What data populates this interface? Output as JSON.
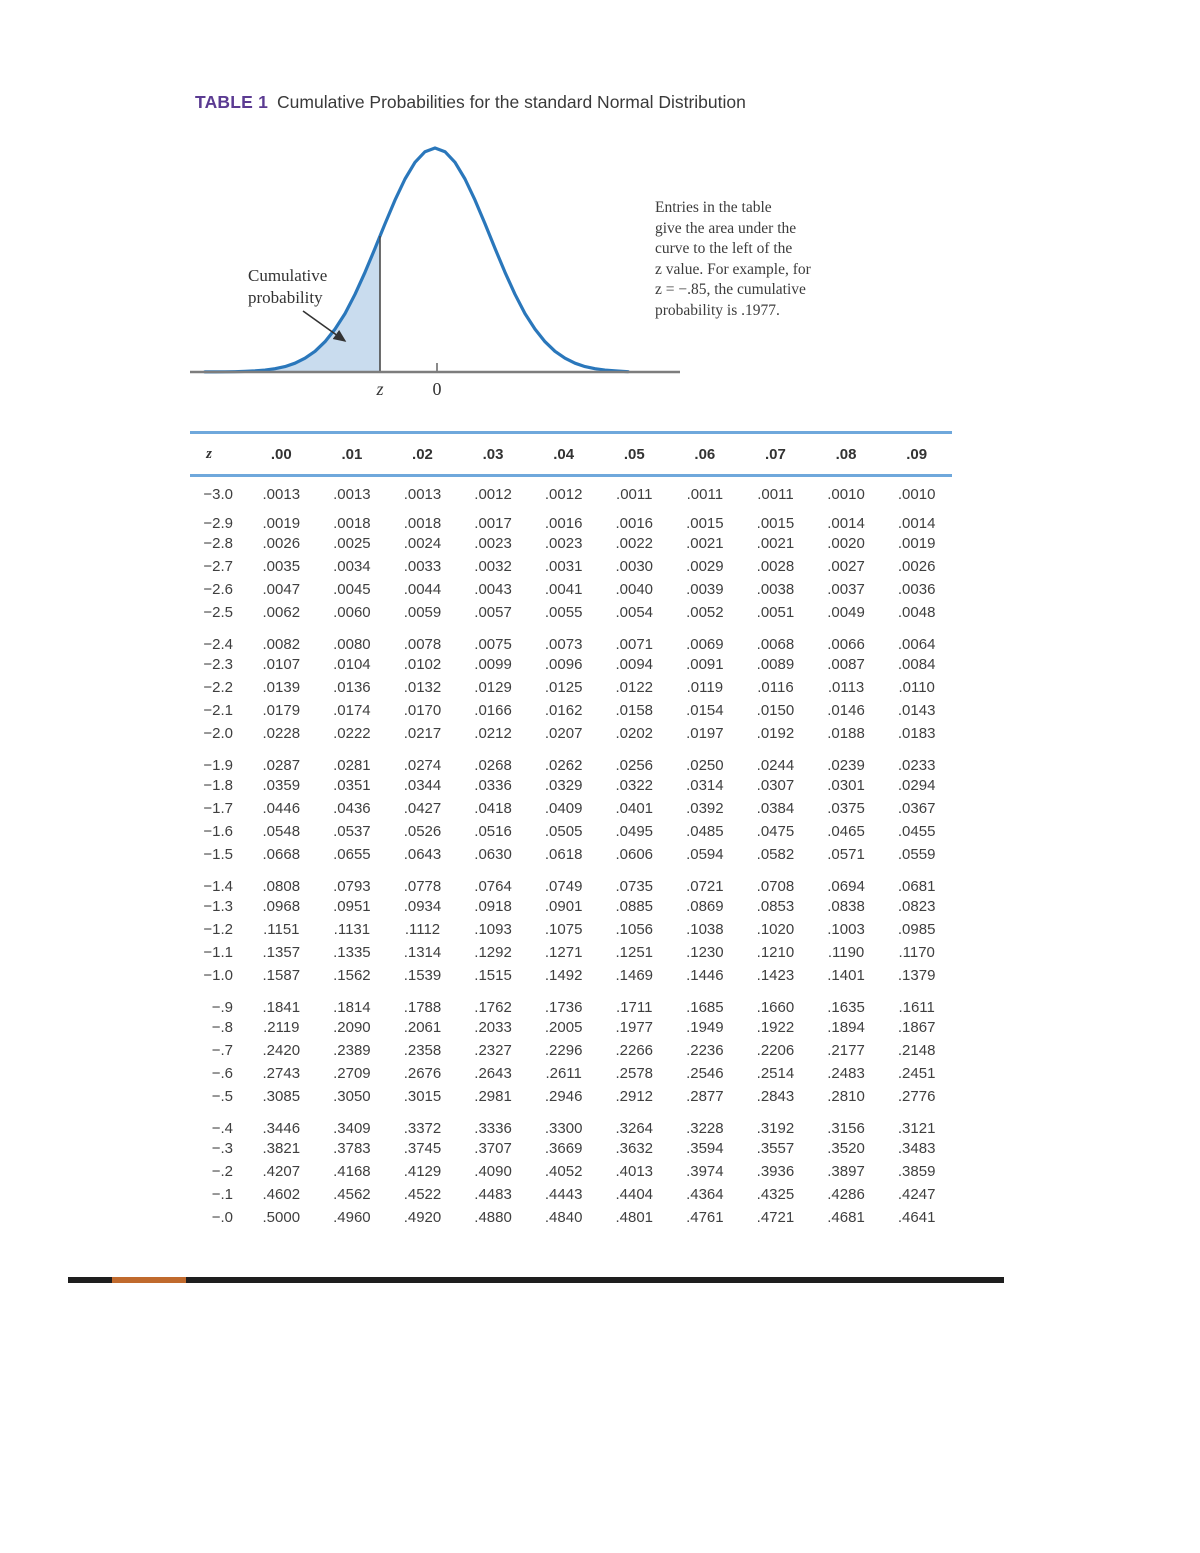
{
  "title": {
    "label": "TABLE 1",
    "text": "Cumulative Probabilities for the standard Normal Distribution"
  },
  "figure": {
    "cumulative_label_lines": [
      "Cumulative",
      "probability"
    ],
    "axis_label_z": "z",
    "axis_label_zero": "0",
    "annotation_lines": [
      "Entries in the table",
      "give the area under the",
      "curve to the left of the",
      "z value. For example, for",
      "z = −.85, the cumulative",
      "probability is .1977."
    ]
  },
  "colors": {
    "title_accent": "#5b3b92",
    "table_rule_blue": "#6fa8dc",
    "curve_blue": "#2a77bb",
    "shade_blue": "#c9dcee",
    "bottom_bar_black": "#1e1e1e",
    "bottom_bar_orange": "#c06a2d"
  },
  "table": {
    "col_headers": [
      "z",
      ".00",
      ".01",
      ".02",
      ".03",
      ".04",
      ".05",
      ".06",
      ".07",
      ".08",
      ".09"
    ],
    "groups": [
      [
        [
          "−3.0",
          ".0013",
          ".0013",
          ".0013",
          ".0012",
          ".0012",
          ".0011",
          ".0011",
          ".0011",
          ".0010",
          ".0010"
        ]
      ],
      [
        [
          "−2.9",
          ".0019",
          ".0018",
          ".0018",
          ".0017",
          ".0016",
          ".0016",
          ".0015",
          ".0015",
          ".0014",
          ".0014"
        ],
        [
          "−2.8",
          ".0026",
          ".0025",
          ".0024",
          ".0023",
          ".0023",
          ".0022",
          ".0021",
          ".0021",
          ".0020",
          ".0019"
        ],
        [
          "−2.7",
          ".0035",
          ".0034",
          ".0033",
          ".0032",
          ".0031",
          ".0030",
          ".0029",
          ".0028",
          ".0027",
          ".0026"
        ],
        [
          "−2.6",
          ".0047",
          ".0045",
          ".0044",
          ".0043",
          ".0041",
          ".0040",
          ".0039",
          ".0038",
          ".0037",
          ".0036"
        ],
        [
          "−2.5",
          ".0062",
          ".0060",
          ".0059",
          ".0057",
          ".0055",
          ".0054",
          ".0052",
          ".0051",
          ".0049",
          ".0048"
        ]
      ],
      [
        [
          "−2.4",
          ".0082",
          ".0080",
          ".0078",
          ".0075",
          ".0073",
          ".0071",
          ".0069",
          ".0068",
          ".0066",
          ".0064"
        ],
        [
          "−2.3",
          ".0107",
          ".0104",
          ".0102",
          ".0099",
          ".0096",
          ".0094",
          ".0091",
          ".0089",
          ".0087",
          ".0084"
        ],
        [
          "−2.2",
          ".0139",
          ".0136",
          ".0132",
          ".0129",
          ".0125",
          ".0122",
          ".0119",
          ".0116",
          ".0113",
          ".0110"
        ],
        [
          "−2.1",
          ".0179",
          ".0174",
          ".0170",
          ".0166",
          ".0162",
          ".0158",
          ".0154",
          ".0150",
          ".0146",
          ".0143"
        ],
        [
          "−2.0",
          ".0228",
          ".0222",
          ".0217",
          ".0212",
          ".0207",
          ".0202",
          ".0197",
          ".0192",
          ".0188",
          ".0183"
        ]
      ],
      [
        [
          "−1.9",
          ".0287",
          ".0281",
          ".0274",
          ".0268",
          ".0262",
          ".0256",
          ".0250",
          ".0244",
          ".0239",
          ".0233"
        ],
        [
          "−1.8",
          ".0359",
          ".0351",
          ".0344",
          ".0336",
          ".0329",
          ".0322",
          ".0314",
          ".0307",
          ".0301",
          ".0294"
        ],
        [
          "−1.7",
          ".0446",
          ".0436",
          ".0427",
          ".0418",
          ".0409",
          ".0401",
          ".0392",
          ".0384",
          ".0375",
          ".0367"
        ],
        [
          "−1.6",
          ".0548",
          ".0537",
          ".0526",
          ".0516",
          ".0505",
          ".0495",
          ".0485",
          ".0475",
          ".0465",
          ".0455"
        ],
        [
          "−1.5",
          ".0668",
          ".0655",
          ".0643",
          ".0630",
          ".0618",
          ".0606",
          ".0594",
          ".0582",
          ".0571",
          ".0559"
        ]
      ],
      [
        [
          "−1.4",
          ".0808",
          ".0793",
          ".0778",
          ".0764",
          ".0749",
          ".0735",
          ".0721",
          ".0708",
          ".0694",
          ".0681"
        ],
        [
          "−1.3",
          ".0968",
          ".0951",
          ".0934",
          ".0918",
          ".0901",
          ".0885",
          ".0869",
          ".0853",
          ".0838",
          ".0823"
        ],
        [
          "−1.2",
          ".1151",
          ".1131",
          ".1112",
          ".1093",
          ".1075",
          ".1056",
          ".1038",
          ".1020",
          ".1003",
          ".0985"
        ],
        [
          "−1.1",
          ".1357",
          ".1335",
          ".1314",
          ".1292",
          ".1271",
          ".1251",
          ".1230",
          ".1210",
          ".1190",
          ".1170"
        ],
        [
          "−1.0",
          ".1587",
          ".1562",
          ".1539",
          ".1515",
          ".1492",
          ".1469",
          ".1446",
          ".1423",
          ".1401",
          ".1379"
        ]
      ],
      [
        [
          "−.9",
          ".1841",
          ".1814",
          ".1788",
          ".1762",
          ".1736",
          ".1711",
          ".1685",
          ".1660",
          ".1635",
          ".1611"
        ],
        [
          "−.8",
          ".2119",
          ".2090",
          ".2061",
          ".2033",
          ".2005",
          ".1977",
          ".1949",
          ".1922",
          ".1894",
          ".1867"
        ],
        [
          "−.7",
          ".2420",
          ".2389",
          ".2358",
          ".2327",
          ".2296",
          ".2266",
          ".2236",
          ".2206",
          ".2177",
          ".2148"
        ],
        [
          "−.6",
          ".2743",
          ".2709",
          ".2676",
          ".2643",
          ".2611",
          ".2578",
          ".2546",
          ".2514",
          ".2483",
          ".2451"
        ],
        [
          "−.5",
          ".3085",
          ".3050",
          ".3015",
          ".2981",
          ".2946",
          ".2912",
          ".2877",
          ".2843",
          ".2810",
          ".2776"
        ]
      ],
      [
        [
          "−.4",
          ".3446",
          ".3409",
          ".3372",
          ".3336",
          ".3300",
          ".3264",
          ".3228",
          ".3192",
          ".3156",
          ".3121"
        ],
        [
          "−.3",
          ".3821",
          ".3783",
          ".3745",
          ".3707",
          ".3669",
          ".3632",
          ".3594",
          ".3557",
          ".3520",
          ".3483"
        ],
        [
          "−.2",
          ".4207",
          ".4168",
          ".4129",
          ".4090",
          ".4052",
          ".4013",
          ".3974",
          ".3936",
          ".3897",
          ".3859"
        ],
        [
          "−.1",
          ".4602",
          ".4562",
          ".4522",
          ".4483",
          ".4443",
          ".4404",
          ".4364",
          ".4325",
          ".4286",
          ".4247"
        ],
        [
          "−.0",
          ".5000",
          ".4960",
          ".4920",
          ".4880",
          ".4840",
          ".4801",
          ".4761",
          ".4721",
          ".4681",
          ".4641"
        ]
      ]
    ]
  }
}
